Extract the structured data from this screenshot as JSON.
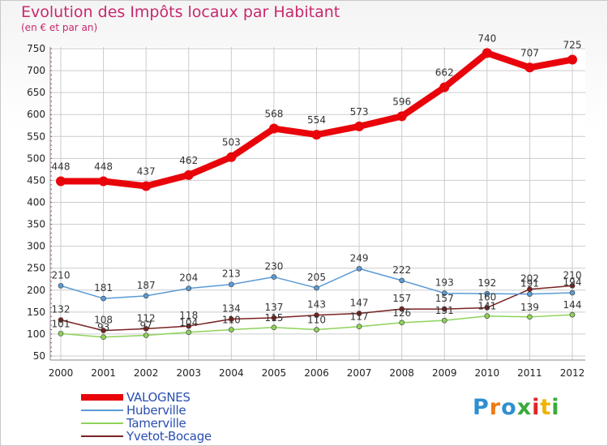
{
  "header": {
    "title": "Evolution des Impôts locaux par Habitant",
    "subtitle": "(en € et par an)"
  },
  "logo": {
    "text": "Proxiti"
  },
  "colors": {
    "title": "#c8286e",
    "legend_text": "#2a4fb0",
    "grid": "#cccccc",
    "axis_text": "#222222"
  },
  "chart_data": {
    "type": "line",
    "title": "Evolution des Impôts locaux par Habitant",
    "subtitle": "(en € et par an)",
    "xlabel": "",
    "ylabel": "",
    "ylim": [
      50,
      750
    ],
    "yticks": [
      50,
      100,
      150,
      200,
      250,
      300,
      350,
      400,
      450,
      500,
      550,
      600,
      650,
      700,
      750
    ],
    "x": [
      "2000",
      "2001",
      "2002",
      "2003",
      "2004",
      "2005",
      "2006",
      "2007",
      "2008",
      "2009",
      "2010",
      "2011",
      "2012"
    ],
    "grid": true,
    "legend_position": "bottom-left",
    "series": [
      {
        "name": "VALOGNES",
        "color": "#e8040a",
        "values": [
          448,
          448,
          437,
          462,
          503,
          568,
          554,
          573,
          596,
          662,
          740,
          707,
          725
        ],
        "labels": [
          "448",
          "448",
          "437",
          "462",
          "503",
          "568",
          "554",
          "573",
          "596",
          "662",
          "740",
          "707",
          "725"
        ]
      },
      {
        "name": "Huberville",
        "color": "#5b9bd5",
        "values": [
          210,
          181,
          187,
          204,
          213,
          230,
          205,
          249,
          222,
          193,
          192,
          191,
          194
        ],
        "labels": [
          "210",
          "181",
          "187",
          "204",
          "213",
          "230",
          "205",
          "249",
          "222",
          "193",
          "192",
          "191",
          "194"
        ]
      },
      {
        "name": "Tamerville",
        "color": "#8ed35a",
        "values": [
          101,
          93,
          97,
          104,
          110,
          115,
          110,
          117,
          126,
          131,
          141,
          139,
          144
        ],
        "labels": [
          "101",
          "93",
          "97",
          "104",
          "110",
          "115",
          "110",
          "117",
          "126",
          "131",
          "141",
          "139",
          "144"
        ]
      },
      {
        "name": "Yvetot-Bocage",
        "color": "#7a2222",
        "values": [
          132,
          108,
          112,
          118,
          134,
          137,
          143,
          147,
          157,
          157,
          160,
          202,
          210
        ],
        "labels": [
          "132",
          "108",
          "112",
          "118",
          "134",
          "137",
          "143",
          "147",
          "157",
          "157",
          "160",
          "202",
          "210"
        ]
      }
    ]
  }
}
